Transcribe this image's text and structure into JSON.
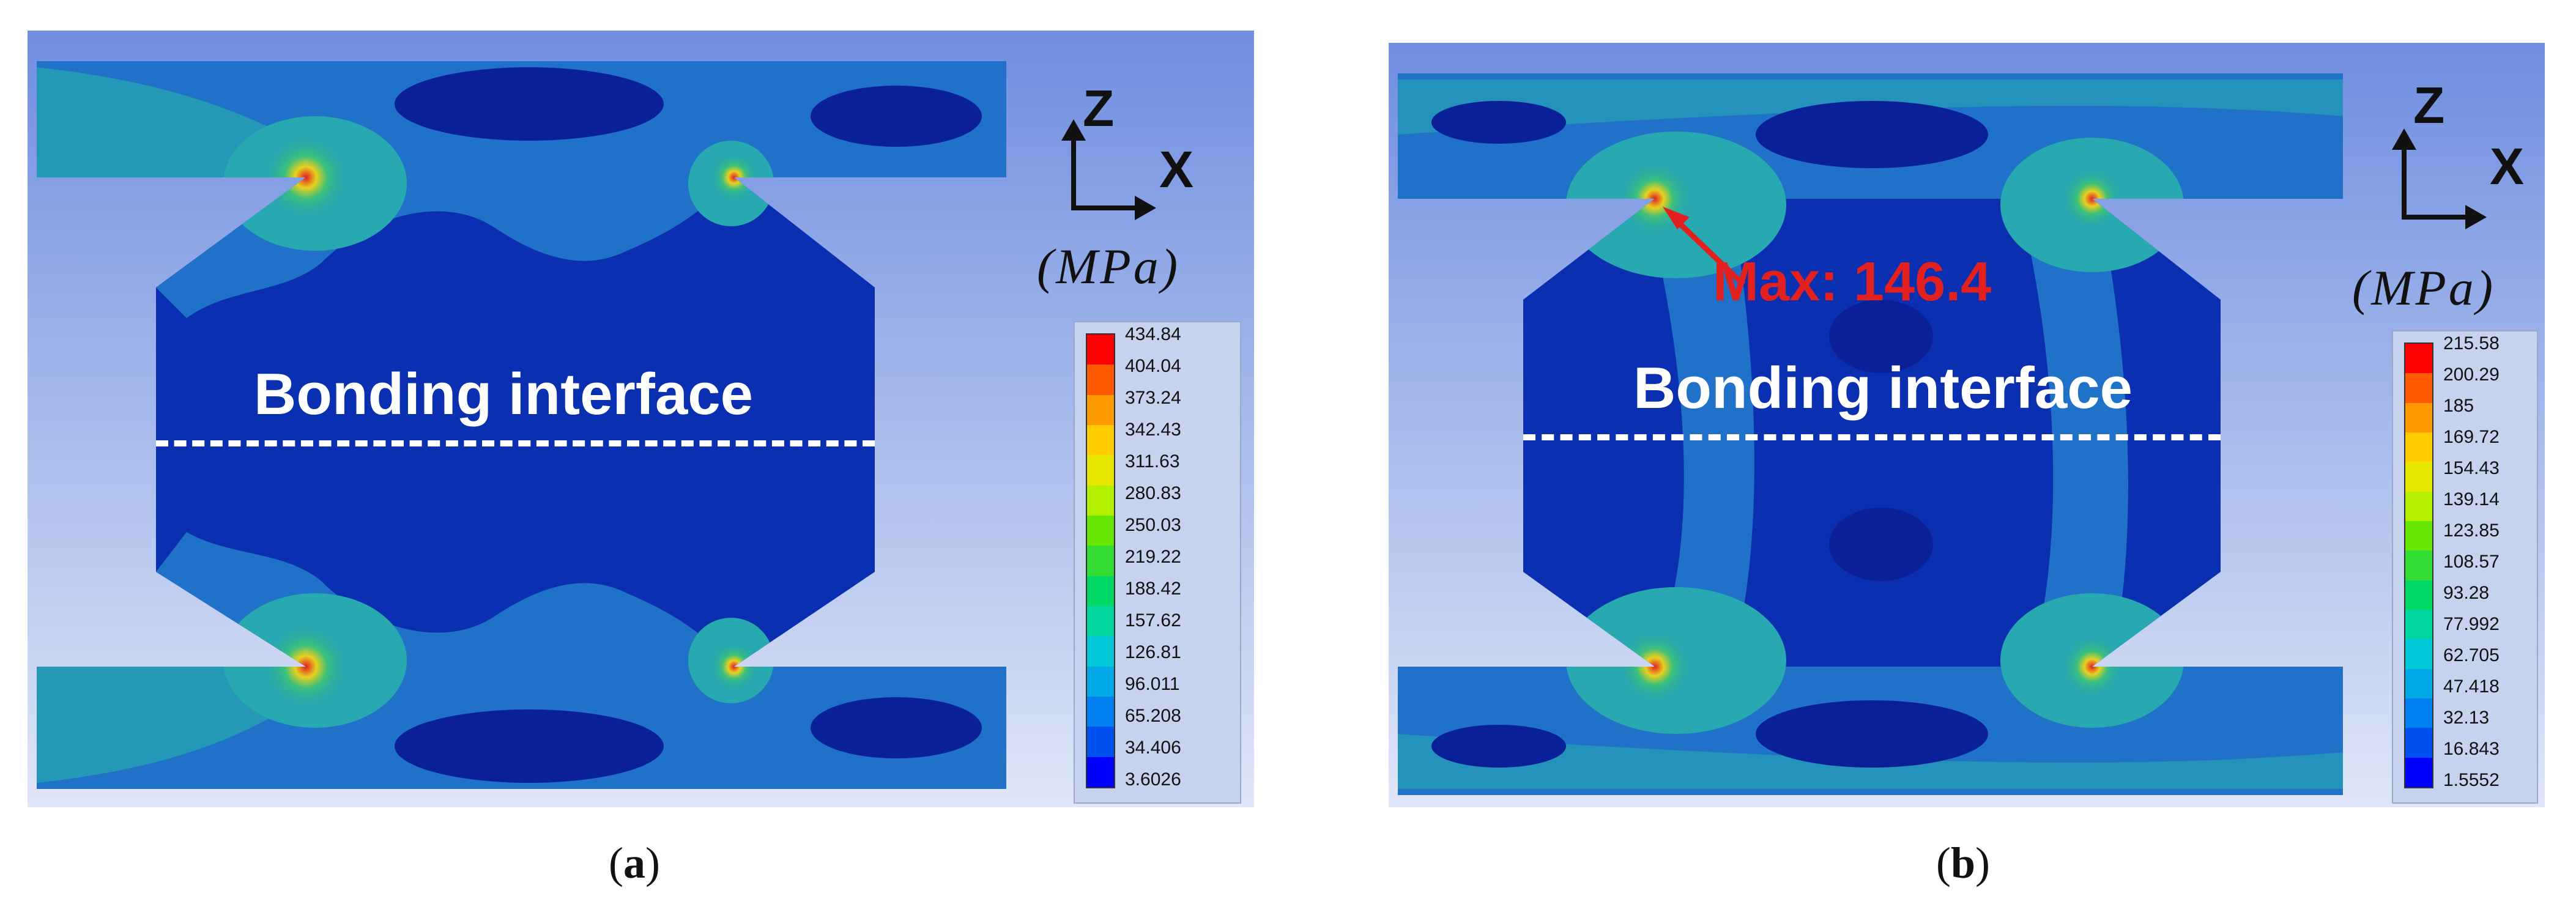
{
  "panels": [
    {
      "id": "a",
      "caption_open": "(",
      "caption_letter": "a",
      "caption_close": ")",
      "axis_z": "Z",
      "axis_x": "X",
      "unit": "(MPa)",
      "interface_label": "Bonding interface",
      "max_label": "",
      "legend": [
        "434.84",
        "404.04",
        "373.24",
        "342.43",
        "311.63",
        "280.83",
        "250.03",
        "219.22",
        "188.42",
        "157.62",
        "126.81",
        "96.011",
        "65.208",
        "34.406",
        "3.6026"
      ]
    },
    {
      "id": "b",
      "caption_open": "(",
      "caption_letter": "b",
      "caption_close": ")",
      "axis_z": "Z",
      "axis_x": "X",
      "unit": "(MPa)",
      "interface_label": "Bonding interface",
      "max_label": "Max: 146.4",
      "legend": [
        "215.58",
        "200.29",
        "185",
        "169.72",
        "154.43",
        "139.14",
        "123.85",
        "108.57",
        "93.28",
        "77.992",
        "62.705",
        "47.418",
        "32.13",
        "16.843",
        "1.5552"
      ]
    }
  ],
  "colors": {
    "background_top": "#6f8ee0",
    "background_bottom": "#dfe6f7",
    "stress_low": "#0a2fb0",
    "stress_mid": "#1f72c8",
    "stress_cyan": "#28a8b0",
    "stress_green": "#3cc07a",
    "stress_high": "#e02020",
    "max_arrow": "#e32020",
    "legend_scale": [
      "#ff0000",
      "#ff5a00",
      "#ff9900",
      "#ffcc00",
      "#e6e600",
      "#b3f000",
      "#66e600",
      "#33dd33",
      "#00d866",
      "#00d6a0",
      "#00c8d6",
      "#00a8e6",
      "#0080f0",
      "#0050f0",
      "#0000ff"
    ]
  }
}
